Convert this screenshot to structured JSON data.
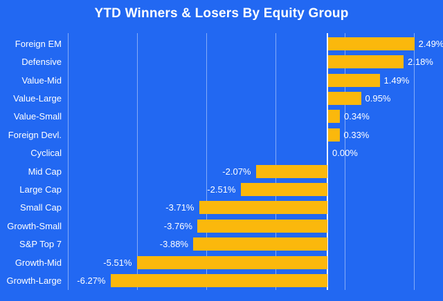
{
  "chart_data": {
    "type": "bar",
    "orientation": "horizontal",
    "title": "YTD Winners & Losers By Equity Group",
    "categories": [
      "Foreign EM",
      "Defensive",
      "Value-Mid",
      "Value-Large",
      "Value-Small",
      "Foreign Devl.",
      "Cyclical",
      "Mid Cap",
      "Large Cap",
      "Small Cap",
      "Growth-Small",
      "S&P Top 7",
      "Growth-Mid",
      "Growth-Large"
    ],
    "values": [
      2.49,
      2.18,
      1.49,
      0.95,
      0.34,
      0.33,
      0.0,
      -2.07,
      -2.51,
      -3.71,
      -3.76,
      -3.88,
      -5.51,
      -6.27
    ],
    "value_labels": [
      "2.49%",
      "2.18%",
      "1.49%",
      "0.95%",
      "0.34%",
      "0.33%",
      "0.00%",
      "-2.07%",
      "-2.51%",
      "-3.71%",
      "-3.76%",
      "-3.88%",
      "-5.51%",
      "-6.27%"
    ],
    "xlabel": "",
    "ylabel": "",
    "xlim": [
      -7.5,
      2.5
    ],
    "gridlines": [
      -5.5,
      -3.5,
      -1.5,
      0.5,
      2.5
    ],
    "grid": "vertical-only",
    "legend": "none",
    "colors": {
      "background": "#2268F2",
      "bar": "#FBB80C",
      "text": "#FFFFFF",
      "gridline": "rgba(255,255,255,0.45)",
      "zero_axis": "rgba(255,255,255,0.95)"
    }
  }
}
